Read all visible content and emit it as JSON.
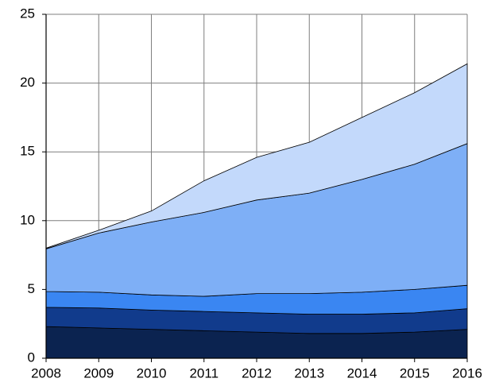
{
  "chart_data": {
    "type": "stacked_area",
    "x": [
      2008,
      2009,
      2010,
      2011,
      2012,
      2013,
      2014,
      2015,
      2016
    ],
    "series": [
      {
        "color": "#0b2350",
        "values": [
          2.3,
          2.2,
          2.1,
          2.0,
          1.9,
          1.8,
          1.8,
          1.9,
          2.1
        ]
      },
      {
        "color": "#113b8c",
        "values": [
          1.4,
          1.45,
          1.4,
          1.4,
          1.4,
          1.4,
          1.4,
          1.4,
          1.5
        ]
      },
      {
        "color": "#3a86f2",
        "values": [
          1.15,
          1.15,
          1.1,
          1.1,
          1.4,
          1.5,
          1.6,
          1.7,
          1.7
        ]
      },
      {
        "color": "#7eaff6",
        "values": [
          3.1,
          4.3,
          5.3,
          6.1,
          6.8,
          7.3,
          8.2,
          9.1,
          10.3
        ]
      },
      {
        "color": "#c3d9fb",
        "values": [
          0.05,
          0.2,
          0.8,
          2.3,
          3.1,
          3.7,
          4.5,
          5.2,
          5.8
        ]
      }
    ],
    "xlim": [
      2008,
      2016
    ],
    "xticks": [
      2008,
      2009,
      2010,
      2011,
      2012,
      2013,
      2014,
      2015,
      2016
    ],
    "ylim": [
      0,
      25
    ],
    "yticks": [
      0,
      5,
      10,
      15,
      20,
      25
    ],
    "grid": true
  }
}
